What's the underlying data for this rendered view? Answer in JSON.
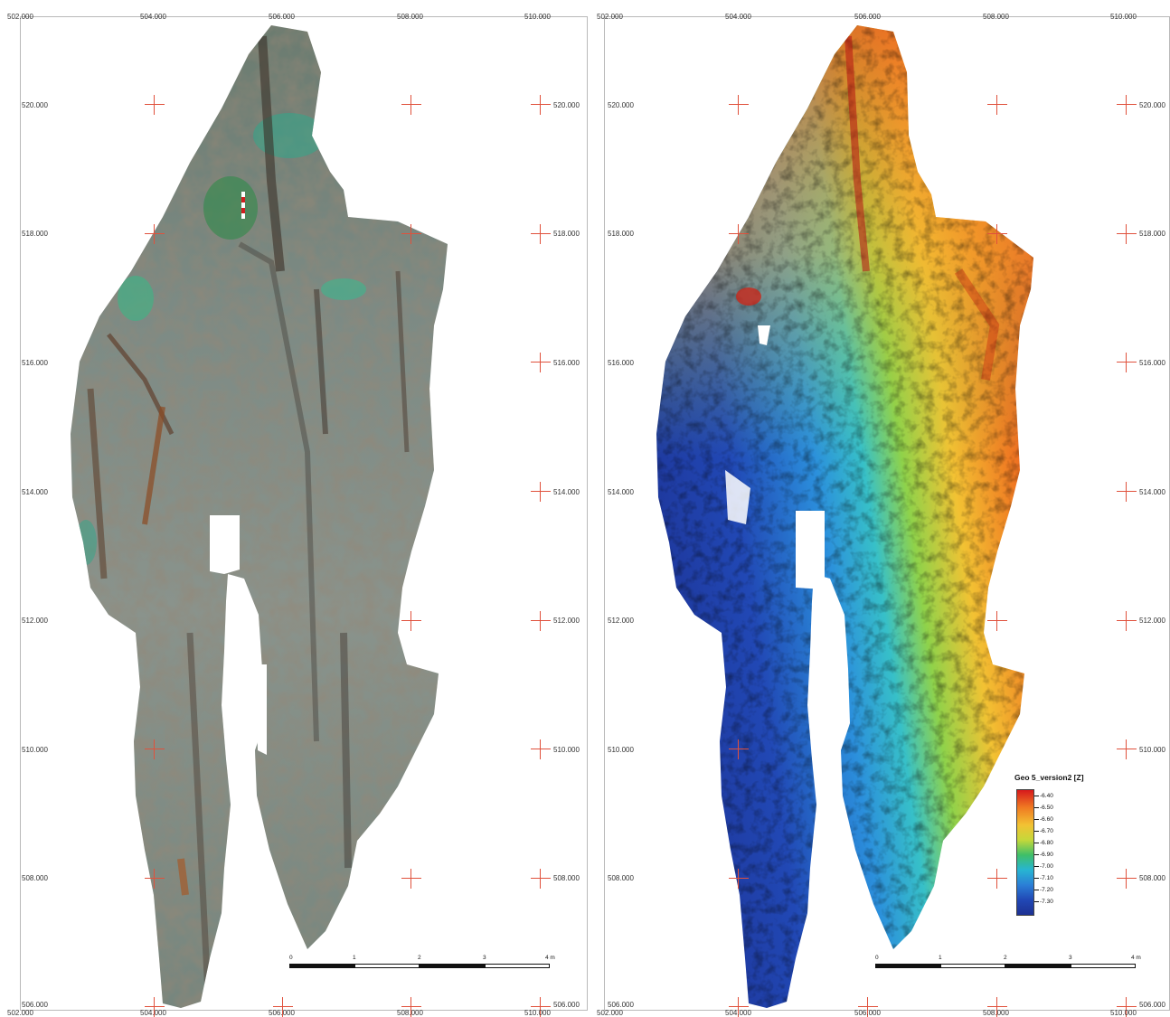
{
  "left_panel": {
    "x_ticks_top": [
      "502.000",
      "504.000",
      "506.000",
      "508.000",
      "510.000"
    ],
    "x_ticks_bottom": [
      "502.000",
      "504.000",
      "506.000",
      "508.000",
      "510.000"
    ],
    "y_ticks": [
      "520.000",
      "518.000",
      "516.000",
      "514.000",
      "512.000",
      "510.000",
      "508.000",
      "506.000"
    ],
    "scale_labels": [
      "0",
      "1",
      "2",
      "3",
      "4 m"
    ]
  },
  "right_panel": {
    "x_ticks_top": [
      "502.000",
      "504.000",
      "506.000",
      "508.000",
      "510.000"
    ],
    "x_ticks_bottom": [
      "502.000",
      "504.000",
      "506.000",
      "508.000",
      "510.000"
    ],
    "y_ticks": [
      "520.000",
      "518.000",
      "516.000",
      "514.000",
      "512.000",
      "510.000",
      "508.000",
      "506.000"
    ],
    "scale_labels": [
      "0",
      "1",
      "2",
      "3",
      "4 m"
    ],
    "legend": {
      "title": "Geo 5_version2 [Z]",
      "ticks": [
        "-6.40",
        "-6.50",
        "-6.60",
        "-6.70",
        "-6.80",
        "-6.90",
        "-7.00",
        "-7.10",
        "-7.20",
        "-7.30"
      ],
      "colors": [
        "#d7191c",
        "#f07a22",
        "#f2c233",
        "#c5d83a",
        "#3fbf68",
        "#27b5d2",
        "#2b7fd6",
        "#2148b5",
        "#1d3193"
      ]
    }
  }
}
